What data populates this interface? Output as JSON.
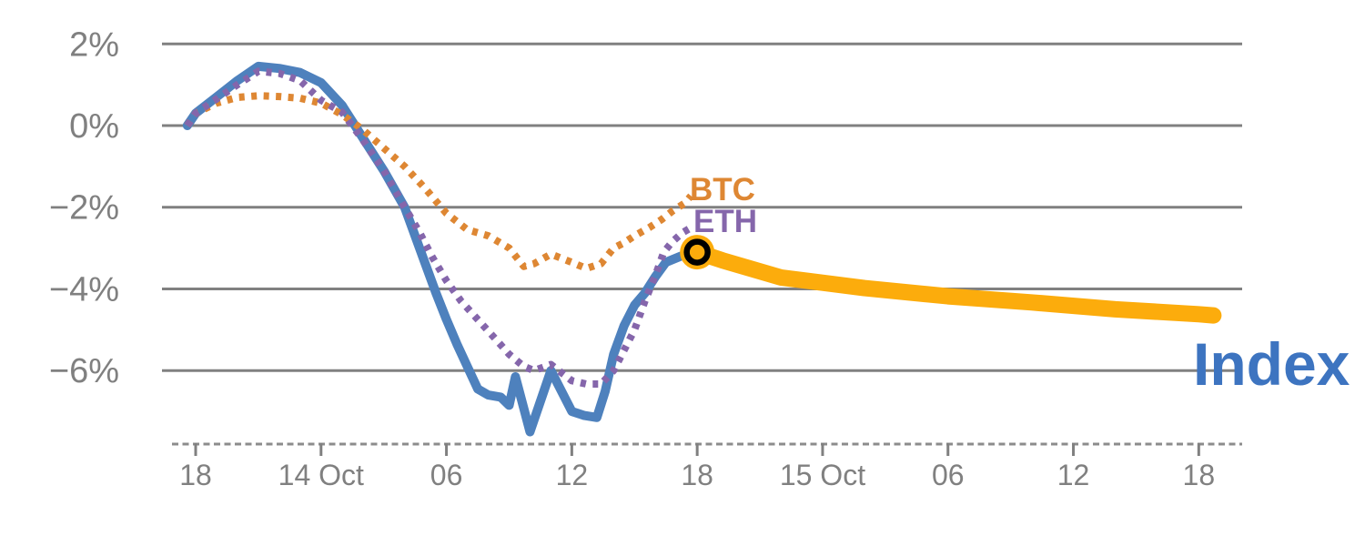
{
  "chart_data": {
    "type": "line",
    "title": "",
    "xlabel": "",
    "ylabel": "",
    "grid": "horizontal",
    "background": "#ffffff",
    "y_axis": {
      "unit": "%",
      "tick_values": [
        2,
        0,
        -2,
        -4,
        -6
      ],
      "tick_labels": [
        "2%",
        "0%",
        "−2%",
        "−4%",
        "−6%"
      ],
      "range": [
        -7.8,
        2.3
      ]
    },
    "x_axis": {
      "tick_hours": [
        0,
        6,
        12,
        18,
        24,
        30,
        36,
        42,
        48
      ],
      "tick_labels": [
        "18",
        "14 Oct",
        "06",
        "12",
        "18",
        "15 Oct",
        "06",
        "12",
        "18"
      ],
      "style": "dashed"
    },
    "series": [
      {
        "name": "BTC",
        "style": "dotted",
        "color": "#DE8733",
        "points": [
          [
            -0.4,
            0.0
          ],
          [
            0,
            0.3
          ],
          [
            1,
            0.55
          ],
          [
            2,
            0.69
          ],
          [
            3,
            0.73
          ],
          [
            4,
            0.71
          ],
          [
            5,
            0.67
          ],
          [
            6,
            0.55
          ],
          [
            7,
            0.27
          ],
          [
            8,
            -0.1
          ],
          [
            9,
            -0.55
          ],
          [
            10,
            -1.0
          ],
          [
            11,
            -1.55
          ],
          [
            12,
            -2.15
          ],
          [
            13,
            -2.55
          ],
          [
            14,
            -2.7
          ],
          [
            15,
            -3.0
          ],
          [
            15.7,
            -3.45
          ],
          [
            16.2,
            -3.38
          ],
          [
            17,
            -3.15
          ],
          [
            18,
            -3.35
          ],
          [
            18.7,
            -3.5
          ],
          [
            19.4,
            -3.38
          ],
          [
            20,
            -3.0
          ],
          [
            20.5,
            -2.87
          ],
          [
            21,
            -2.7
          ],
          [
            21.7,
            -2.5
          ],
          [
            22.3,
            -2.3
          ],
          [
            22.8,
            -2.1
          ],
          [
            23.4,
            -1.9
          ],
          [
            23.7,
            -1.72
          ]
        ]
      },
      {
        "name": "ETH",
        "style": "dotted",
        "color": "#8566AB",
        "points": [
          [
            -0.4,
            0.0
          ],
          [
            0,
            0.3
          ],
          [
            1,
            0.65
          ],
          [
            2,
            1.0
          ],
          [
            3,
            1.33
          ],
          [
            4,
            1.28
          ],
          [
            5,
            1.1
          ],
          [
            6,
            0.62
          ],
          [
            7,
            0.33
          ],
          [
            8,
            -0.35
          ],
          [
            9,
            -1.1
          ],
          [
            10,
            -2.0
          ],
          [
            10.7,
            -2.6
          ],
          [
            11.3,
            -3.2
          ],
          [
            12,
            -3.8
          ],
          [
            12.7,
            -4.3
          ],
          [
            13.5,
            -4.75
          ],
          [
            14.3,
            -5.2
          ],
          [
            15,
            -5.6
          ],
          [
            15.7,
            -5.9
          ],
          [
            16.2,
            -6.0
          ],
          [
            17,
            -5.85
          ],
          [
            17.5,
            -6.05
          ],
          [
            18,
            -6.25
          ],
          [
            18.7,
            -6.33
          ],
          [
            19.4,
            -6.33
          ],
          [
            20,
            -6.0
          ],
          [
            20.4,
            -5.6
          ],
          [
            21,
            -5.0
          ],
          [
            21.5,
            -4.3
          ],
          [
            22,
            -3.67
          ],
          [
            22.4,
            -3.1
          ],
          [
            22.8,
            -2.85
          ],
          [
            23.3,
            -2.62
          ],
          [
            23.7,
            -2.5
          ]
        ]
      },
      {
        "name": "Index",
        "style": "solid",
        "color": "#4E81BD",
        "points": [
          [
            -0.4,
            0.0
          ],
          [
            0,
            0.3
          ],
          [
            1,
            0.7
          ],
          [
            2,
            1.1
          ],
          [
            3,
            1.45
          ],
          [
            4,
            1.4
          ],
          [
            5,
            1.3
          ],
          [
            6,
            1.05
          ],
          [
            7,
            0.5
          ],
          [
            8,
            -0.3
          ],
          [
            9,
            -1.1
          ],
          [
            10,
            -2.0
          ],
          [
            10.5,
            -2.7
          ],
          [
            11,
            -3.4
          ],
          [
            11.5,
            -4.1
          ],
          [
            12,
            -4.75
          ],
          [
            12.5,
            -5.35
          ],
          [
            13,
            -5.9
          ],
          [
            13.5,
            -6.45
          ],
          [
            14,
            -6.6
          ],
          [
            14.6,
            -6.65
          ],
          [
            15,
            -6.85
          ],
          [
            15.3,
            -6.15
          ],
          [
            16,
            -7.5
          ],
          [
            17,
            -6.0
          ],
          [
            18,
            -7.0
          ],
          [
            18.6,
            -7.1
          ],
          [
            19.2,
            -7.15
          ],
          [
            19.6,
            -6.5
          ],
          [
            20,
            -5.6
          ],
          [
            20.5,
            -4.9
          ],
          [
            21,
            -4.4
          ],
          [
            21.5,
            -4.1
          ],
          [
            22,
            -3.7
          ],
          [
            22.5,
            -3.35
          ],
          [
            23.2,
            -3.2
          ],
          [
            24,
            -3.1
          ]
        ]
      },
      {
        "name": "Index-projection",
        "style": "solid-thick",
        "color": "#FCAC0C",
        "points": [
          [
            24,
            -3.1
          ],
          [
            25.2,
            -3.3
          ],
          [
            28,
            -3.72
          ],
          [
            32,
            -3.98
          ],
          [
            36,
            -4.18
          ],
          [
            40,
            -4.33
          ],
          [
            44,
            -4.5
          ],
          [
            48,
            -4.62
          ],
          [
            48.7,
            -4.65
          ]
        ]
      }
    ],
    "marker": {
      "t": 24,
      "v": -3.1,
      "shape": "ring",
      "fill_color": "#FCAC0C",
      "ring_color": "#000000"
    }
  },
  "labels": {
    "btc": "BTC",
    "eth": "ETH",
    "index": "Index"
  },
  "colors": {
    "gridline": "#808080",
    "axis_dash": "#8C8C8C",
    "tick_text": "#808080",
    "btc": "#DE8733",
    "eth": "#8566AB",
    "index_line": "#4E81BD",
    "index_text": "#3D74C0",
    "projection": "#FCAC0C"
  }
}
